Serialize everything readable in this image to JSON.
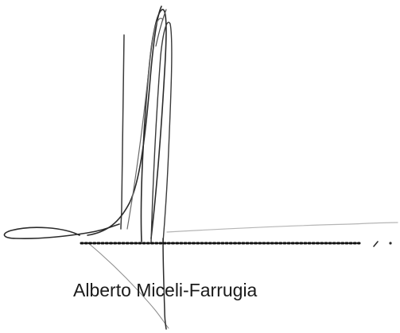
{
  "signatory": {
    "name": "Alberto Miceli-Farrugia"
  },
  "signature": {
    "ink_color": "#2b2b2b",
    "dotted_line_color": "#111111"
  }
}
